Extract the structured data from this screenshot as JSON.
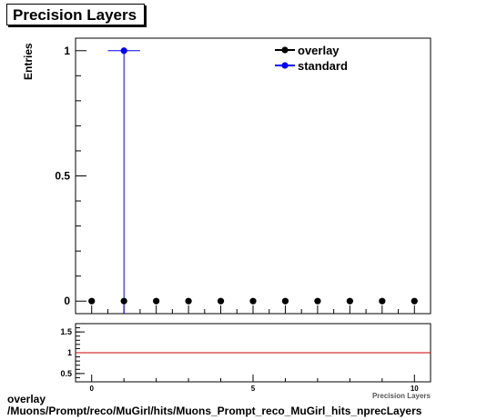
{
  "title": "Precision Layers",
  "y_axis_label": "Entries",
  "footer": {
    "line1": "overlay",
    "line2": "/Muons/Prompt/reco/MuGirl/hits/Muons_Prompt_reco_MuGirl_hits_nprecLayers"
  },
  "legend": [
    {
      "label": "overlay",
      "color": "#000000"
    },
    {
      "label": "standard",
      "color": "#0000ff"
    }
  ],
  "chart_data": [
    {
      "type": "scatter",
      "title": "Precision Layers",
      "ylabel": "Entries",
      "xlim": [
        -0.5,
        10.5
      ],
      "ylim": [
        -0.05,
        1.05
      ],
      "y_tick_labels": [
        "0",
        "0.5",
        "1"
      ],
      "series": [
        {
          "name": "overlay",
          "color": "#000000",
          "x": [
            0,
            1,
            2,
            3,
            4,
            5,
            6,
            7,
            8,
            9,
            10
          ],
          "y": [
            0,
            0,
            0,
            0,
            0,
            0,
            0,
            0,
            0,
            0,
            0
          ]
        },
        {
          "name": "standard",
          "color": "#0000ff",
          "x": [
            1
          ],
          "y": [
            1
          ],
          "xerr": 0.5
        }
      ]
    },
    {
      "type": "line",
      "xlabel": "Precision Layers",
      "xlim": [
        -0.5,
        10.5
      ],
      "ylim": [
        0.3,
        1.7
      ],
      "x_tick_labels": [
        "0",
        "5",
        "10"
      ],
      "y_tick_labels": [
        "0.5",
        "1",
        "1.5"
      ],
      "reference_line": {
        "y": 1,
        "color": "#cc0000"
      }
    }
  ]
}
